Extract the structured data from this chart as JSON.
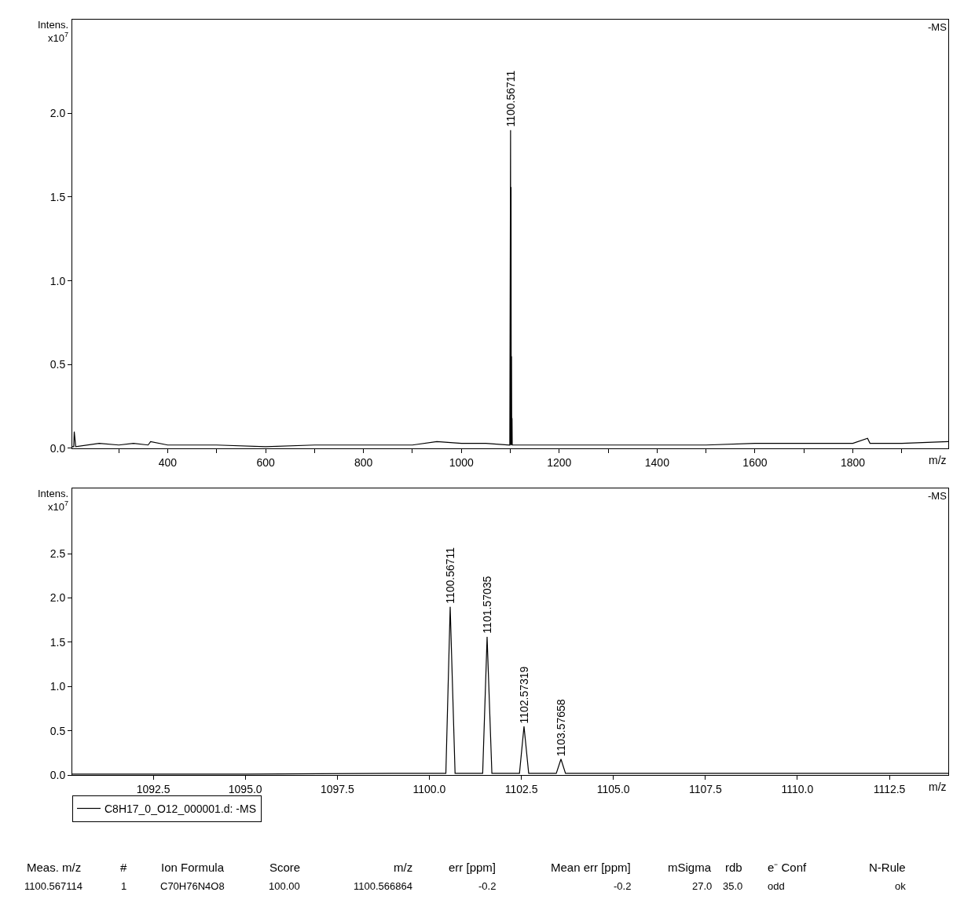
{
  "chart_data": [
    {
      "type": "line",
      "ylabel": "Intens.\nx10$^{7}$",
      "xlabel": "m/z",
      "grid": false,
      "legend": false,
      "marker": "none",
      "line_style": "solid",
      "annotations": [
        "-MS",
        {
          "text": "1100.56711",
          "x": 1100.56711,
          "y": 1.9
        }
      ],
      "series": [
        {
          "color": "#000000",
          "x": [
            205,
            208,
            209,
            212,
            260,
            300,
            330,
            360,
            365,
            400,
            500,
            600,
            700,
            800,
            900,
            950,
            1000,
            1050,
            1099,
            1100.57,
            1101,
            1101.57,
            1102,
            1102.57,
            1103,
            1103.58,
            1104,
            1150,
            1200,
            1300,
            1400,
            1500,
            1600,
            1700,
            1800,
            1830,
            1835,
            1900,
            1995
          ],
          "values": [
            0.01,
            0.01,
            0.1,
            0.01,
            0.03,
            0.02,
            0.03,
            0.02,
            0.04,
            0.02,
            0.02,
            0.01,
            0.02,
            0.02,
            0.02,
            0.04,
            0.03,
            0.03,
            0.02,
            1.9,
            0.02,
            1.56,
            0.02,
            0.55,
            0.02,
            0.18,
            0.02,
            0.02,
            0.02,
            0.02,
            0.02,
            0.02,
            0.03,
            0.03,
            0.03,
            0.06,
            0.03,
            0.03,
            0.04
          ]
        }
      ],
      "xlim": [
        205,
        1995
      ],
      "xticks": [
        {
          "value": 300,
          "label": null
        },
        400,
        {
          "value": 500,
          "label": null
        },
        600,
        {
          "value": 700,
          "label": null
        },
        800,
        {
          "value": 900,
          "label": null
        },
        1000,
        {
          "value": 1100,
          "label": null
        },
        1200,
        {
          "value": 1300,
          "label": null
        },
        1400,
        {
          "value": 1500,
          "label": null
        },
        1600,
        {
          "value": 1700,
          "label": null
        },
        1800,
        {
          "value": 1900,
          "label": null
        }
      ],
      "ylim": [
        0,
        2.56
      ],
      "yticks": [
        {
          "value": 0,
          "label": "0.0"
        },
        0.5,
        {
          "value": 1,
          "label": "1.0"
        },
        1.5,
        {
          "value": 2,
          "label": "2.0"
        }
      ]
    },
    {
      "type": "line",
      "ylabel": "Intens.\nx10$^{7}$",
      "xlabel": "m/z",
      "grid": false,
      "legend": "bottom",
      "marker": "none",
      "line_style": "solid",
      "annotations": [
        "-MS",
        {
          "text": "1100.56711",
          "x": 1100.56711,
          "y": 1.9
        },
        {
          "text": "1101.57035",
          "x": 1101.57035,
          "y": 1.56
        },
        {
          "text": "1102.57319",
          "x": 1102.57319,
          "y": 0.55
        },
        {
          "text": "1103.57658",
          "x": 1103.57658,
          "y": 0.18
        }
      ],
      "series": [
        {
          "name": "C8H17_0_O12_000001.d: -MS",
          "color": "#000000",
          "x": [
            1090.3,
            1095,
            1099,
            1100.45,
            1100.567,
            1100.7,
            1101.45,
            1101.57,
            1101.7,
            1102.45,
            1102.573,
            1102.7,
            1103.45,
            1103.577,
            1103.7,
            1108,
            1114.1
          ],
          "values": [
            0.01,
            0.01,
            0.02,
            0.02,
            1.9,
            0.02,
            0.02,
            1.56,
            0.02,
            0.02,
            0.55,
            0.02,
            0.02,
            0.18,
            0.02,
            0.02,
            0.02
          ]
        }
      ],
      "xlim": [
        1090.3,
        1114.1
      ],
      "xticks": [
        {
          "value": 1092.5,
          "label": "1092.5"
        },
        {
          "value": 1095,
          "label": "1095.0"
        },
        {
          "value": 1097.5,
          "label": "1097.5"
        },
        {
          "value": 1100,
          "label": "1100.0"
        },
        {
          "value": 1102.5,
          "label": "1102.5"
        },
        {
          "value": 1105,
          "label": "1105.0"
        },
        {
          "value": 1107.5,
          "label": "1107.5"
        },
        {
          "value": 1110,
          "label": "1110.0"
        },
        {
          "value": 1112.5,
          "label": "1112.5"
        }
      ],
      "ylim": [
        0,
        3.24
      ],
      "yticks": [
        {
          "value": 0,
          "label": "0.0"
        },
        0.5,
        {
          "value": 1,
          "label": "1.0"
        },
        1.5,
        {
          "value": 2,
          "label": "2.0"
        },
        2.5
      ]
    },
    {
      "type": "other",
      "annotations": [
        "Meas. m/z",
        "#",
        "Ion Formula",
        "Score",
        "m/z",
        "err [ppm]",
        "Mean err [ppm]",
        "mSigma",
        "rdb",
        "e⁻ Conf",
        "N-Rule",
        "1100.567114",
        "1",
        "C70H76N4O8",
        "100.00",
        "1100.566864",
        "-0.2",
        "-0.2",
        "27.0",
        "35.0",
        "odd",
        "ok"
      ]
    }
  ]
}
